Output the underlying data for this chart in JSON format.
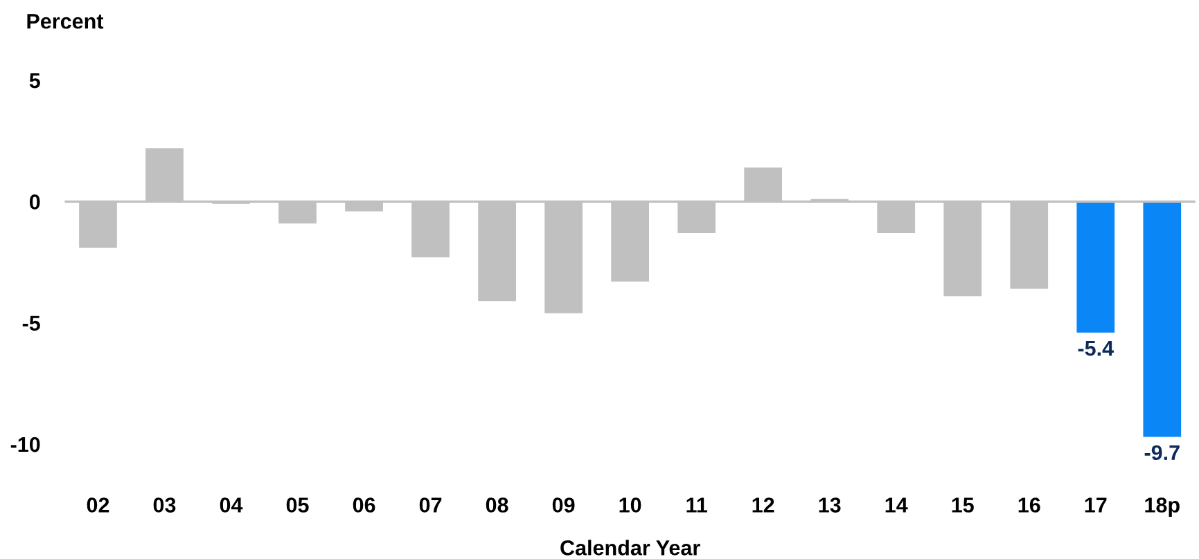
{
  "chart_data": {
    "type": "bar",
    "ylabel": "Percent",
    "xlabel": "Calendar Year",
    "categories": [
      "02",
      "03",
      "04",
      "05",
      "06",
      "07",
      "08",
      "09",
      "10",
      "11",
      "12",
      "13",
      "14",
      "15",
      "16",
      "17",
      "18p"
    ],
    "values": [
      -1.9,
      2.2,
      -0.1,
      -0.9,
      -0.4,
      -2.3,
      -4.1,
      -4.6,
      -3.3,
      -1.3,
      1.4,
      0.1,
      -1.3,
      -3.9,
      -3.6,
      -5.4,
      -9.7
    ],
    "colors": [
      "#c0c0c0",
      "#c0c0c0",
      "#c0c0c0",
      "#c0c0c0",
      "#c0c0c0",
      "#c0c0c0",
      "#c0c0c0",
      "#c0c0c0",
      "#c0c0c0",
      "#c0c0c0",
      "#c0c0c0",
      "#c0c0c0",
      "#c0c0c0",
      "#c0c0c0",
      "#c0c0c0",
      "#0a86f7",
      "#0a86f7"
    ],
    "value_labels": [
      null,
      null,
      null,
      null,
      null,
      null,
      null,
      null,
      null,
      null,
      null,
      null,
      null,
      null,
      null,
      "-5.4",
      "-9.7"
    ],
    "ylim": [
      -10,
      5
    ],
    "yticks": [
      5,
      0,
      -5,
      -10
    ],
    "ref_lines": [
      {
        "axis": "y",
        "value": 0,
        "color": "#c0c0c0"
      }
    ],
    "grid": false,
    "legend": false
  }
}
